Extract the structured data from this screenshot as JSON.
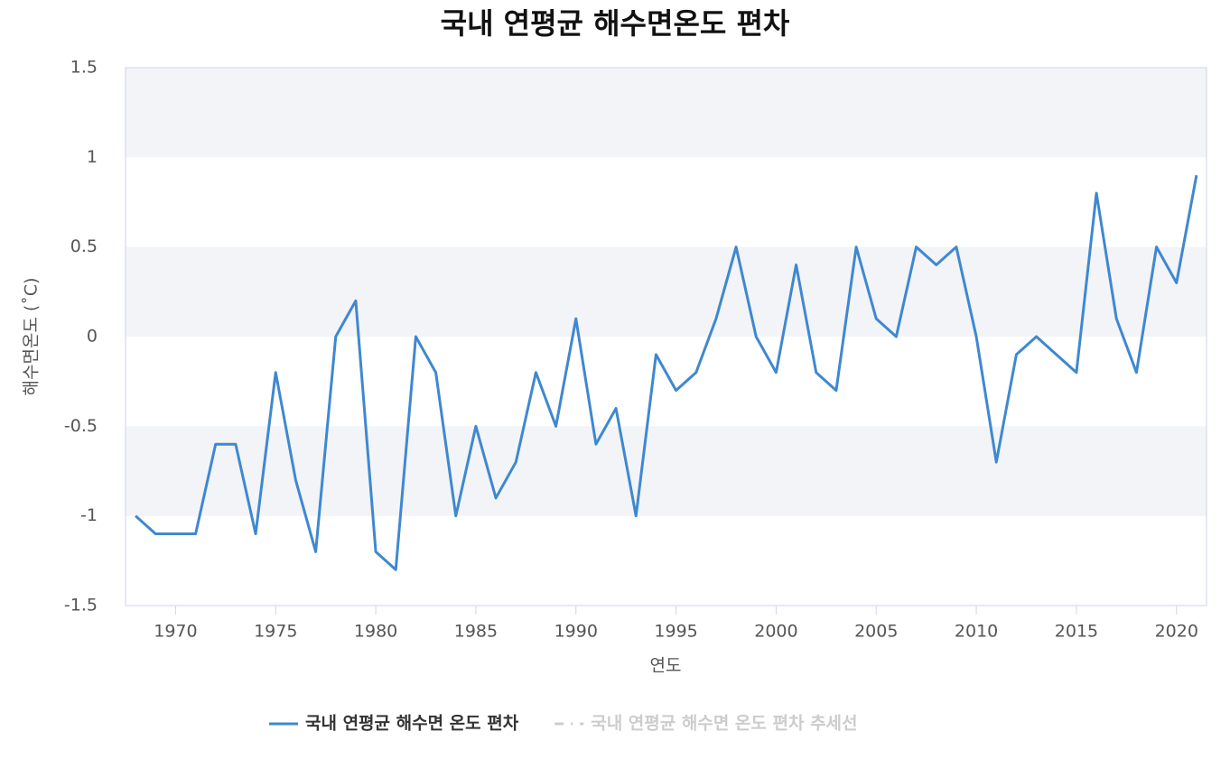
{
  "chart_data": {
    "type": "line",
    "title": "국내 연평균 해수면온도 편차",
    "xlabel": "연도",
    "ylabel": "해수면온도 (˚C)",
    "x": [
      1968,
      1969,
      1970,
      1971,
      1972,
      1973,
      1974,
      1975,
      1976,
      1977,
      1978,
      1979,
      1980,
      1981,
      1982,
      1983,
      1984,
      1985,
      1986,
      1987,
      1988,
      1989,
      1990,
      1991,
      1992,
      1993,
      1994,
      1995,
      1996,
      1997,
      1998,
      1999,
      2000,
      2001,
      2002,
      2003,
      2004,
      2005,
      2006,
      2007,
      2008,
      2009,
      2010,
      2011,
      2012,
      2013,
      2014,
      2015,
      2016,
      2017,
      2018,
      2019,
      2020,
      2021
    ],
    "series": [
      {
        "name": "국내 연평균 해수면 온도 편차",
        "color": "#3f88d0",
        "values": [
          -1.0,
          -1.1,
          -1.1,
          -1.1,
          -0.6,
          -0.6,
          -1.1,
          -0.2,
          -0.8,
          -1.2,
          0.0,
          0.2,
          -1.2,
          -1.3,
          0.0,
          -0.2,
          -1.0,
          -0.5,
          -0.9,
          -0.7,
          -0.2,
          -0.5,
          0.1,
          -0.6,
          -0.4,
          -1.0,
          -0.1,
          -0.3,
          -0.2,
          0.1,
          0.5,
          0.0,
          -0.2,
          0.4,
          -0.2,
          -0.3,
          0.5,
          0.1,
          0.0,
          0.5,
          0.4,
          0.5,
          0.0,
          -0.7,
          -0.1,
          0.0,
          -0.1,
          -0.2,
          0.8,
          0.1,
          -0.2,
          0.5,
          0.3,
          0.9
        ]
      },
      {
        "name": "국내 연평균 해수면 온도 편차 추세선",
        "color": "#cccccc",
        "visible": false
      }
    ],
    "xlim": [
      1967.5,
      2021.5
    ],
    "xticks": [
      1970,
      1975,
      1980,
      1985,
      1990,
      1995,
      2000,
      2005,
      2010,
      2015,
      2020
    ],
    "ylim": [
      -1.5,
      1.5
    ],
    "yticks": [
      1.5,
      1,
      0.5,
      0,
      -0.5,
      -1,
      -1.5
    ],
    "bands": true
  }
}
